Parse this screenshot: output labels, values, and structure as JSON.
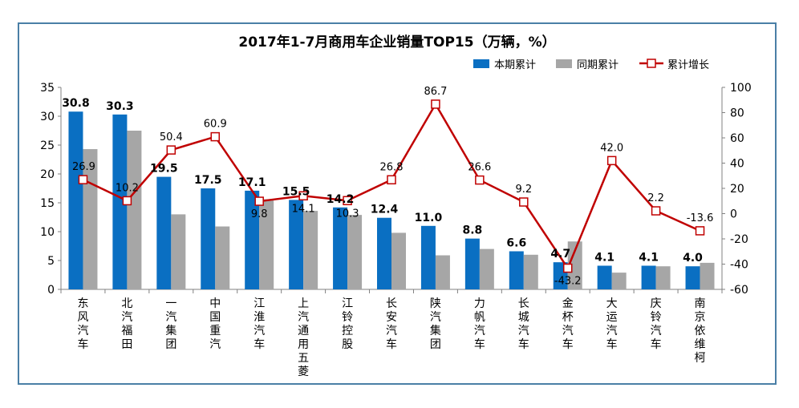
{
  "chart_data": {
    "type": "bar",
    "title": "2017年1-7月商用车企业销量TOP15（万辆，%）",
    "categories": [
      "东风汽车",
      "北汽福田",
      "一汽集团",
      "中国重汽",
      "江淮汽车",
      "上汽通用五菱",
      "江铃控股",
      "长安汽车",
      "陕汽集团",
      "力帆汽车",
      "长城汽车",
      "金杯汽车",
      "大运汽车",
      "庆铃汽车",
      "南京依维柯"
    ],
    "series": [
      {
        "name": "本期累计",
        "kind": "bar",
        "axis": "left",
        "color": "#0a6fc2",
        "values": [
          30.8,
          30.3,
          19.5,
          17.5,
          17.1,
          15.5,
          14.2,
          12.4,
          11.0,
          8.8,
          6.6,
          4.7,
          4.1,
          4.1,
          4.0
        ]
      },
      {
        "name": "同期累计",
        "kind": "bar",
        "axis": "left",
        "color": "#a6a6a6",
        "values": [
          24.3,
          27.5,
          13.0,
          10.9,
          15.6,
          13.6,
          12.9,
          9.8,
          5.9,
          7.0,
          6.0,
          8.3,
          2.9,
          4.0,
          4.6
        ]
      },
      {
        "name": "累计增长",
        "kind": "line",
        "axis": "right",
        "color": "#c00000",
        "values": [
          26.9,
          10.2,
          50.4,
          60.9,
          9.8,
          14.1,
          10.3,
          26.8,
          86.7,
          26.6,
          9.2,
          -43.2,
          42.0,
          2.2,
          -13.6
        ]
      }
    ],
    "bar_labels": [
      "30.8",
      "30.3",
      "19.5",
      "17.5",
      "17.1",
      "15.5",
      "14.2",
      "12.4",
      "11.0",
      "8.8",
      "6.6",
      "4.7",
      "4.1",
      "4.1",
      "4.0"
    ],
    "line_labels": [
      "26.9",
      "10.2",
      "50.4",
      "60.9",
      "9.8",
      "14.1",
      "10.3",
      "26.8",
      "86.7",
      "26.6",
      "9.2",
      "-43.2",
      "42.0",
      "2.2",
      "-13.6"
    ],
    "y_left": {
      "min": 0,
      "max": 35,
      "step": 5,
      "ticks": [
        "0",
        "5",
        "10",
        "15",
        "20",
        "25",
        "30",
        "35"
      ]
    },
    "y_right": {
      "min": -60,
      "max": 100,
      "step": 20,
      "ticks": [
        "-60",
        "-40",
        "-20",
        "0",
        "20",
        "40",
        "60",
        "80",
        "100"
      ]
    },
    "legend": {
      "position": "top-right"
    },
    "grid": false
  }
}
